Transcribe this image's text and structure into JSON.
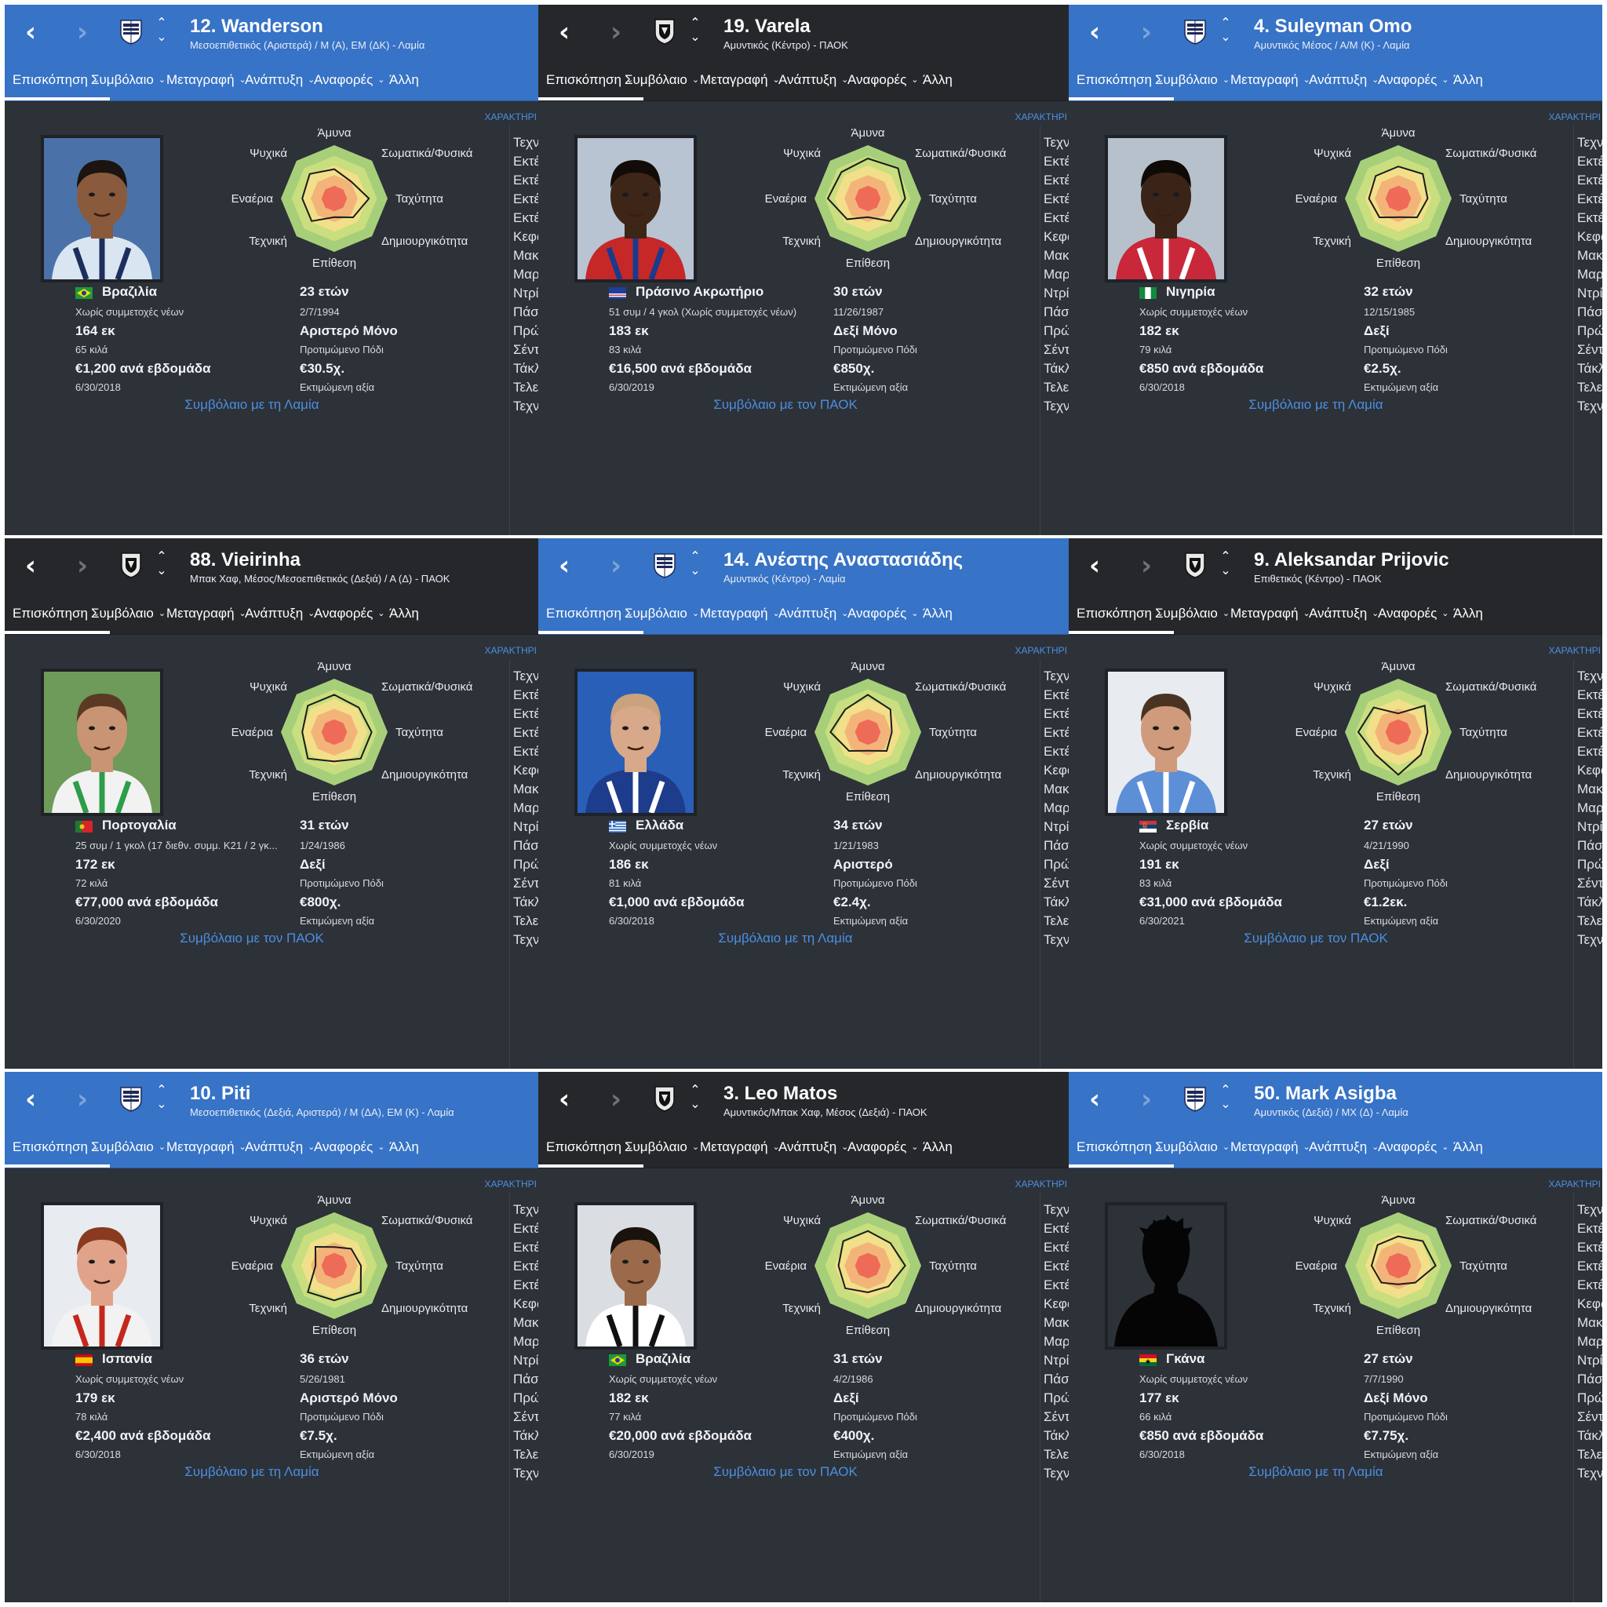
{
  "tabs": [
    "Επισκόπηση",
    "Συμβόλαιο",
    "Μεταγραφή",
    "Ανάπτυξη",
    "Αναφορές",
    "Άλλη"
  ],
  "attributes": {
    "top": "Άμυνα",
    "tr": "Σωματικά/Φυσικά",
    "r": "Ταχύτητα",
    "br": "Δημιουργικότητα",
    "bottom": "Επίθεση",
    "bl": "Τεχνική",
    "l": "Εναέρια",
    "tl": "Ψυχικά"
  },
  "characteristics_header": "ΧΑΡΑΚΤΗΡΙ",
  "right_list": [
    "Τεχνική",
    "Εκτέλεσ",
    "Εκτέλεσ",
    "Εκτέλεσ",
    "Εκτέλεσ",
    "Κεφαλιέ",
    "Μακρινά",
    "Μαρκάρ",
    "Ντρίμπλ",
    "Πάσες",
    "Πρώτη Ε",
    "Σέντρα",
    "Τάκλιν",
    "Τελειώμ",
    "Τεχνική"
  ],
  "colors": {
    "lamia": "#3773c6",
    "paok": "#25272b",
    "panel": "#2d3138",
    "link": "#4a90e2"
  },
  "players": [
    {
      "team": "lamia",
      "name": "12. Wanderson",
      "position": "Μεσοεπιθετικός (Αριστερά) / Μ (Α), ΕΜ (ΔΚ) - Λαμία",
      "nation": "Βραζιλία",
      "flag": "brazil",
      "caps": "Χωρίς συμμετοχές νέων",
      "height": "164 εκ",
      "weight": "65 κιλά",
      "wage": "€1,200 ανά εβδομάδα",
      "expiry": "6/30/2018",
      "age": "23 ετών",
      "dob": "2/7/1994",
      "foot": "Αριστερό Μόνο",
      "foot_lbl": "Προτιμώμενο Πόδι",
      "value": "€30.5χ.",
      "value_lbl": "Εκτιμώμενη αξία",
      "contract": "Συμβόλαιο με τη Λαμία",
      "radar": [
        0.55,
        0.45,
        0.65,
        0.5,
        0.35,
        0.6,
        0.6,
        0.65
      ]
    },
    {
      "team": "paok",
      "name": "19. Varela",
      "position": "Αμυντικός (Κέντρο) - ΠΑΟΚ",
      "nation": "Πράσινο Ακρωτήριο",
      "flag": "capeverde",
      "caps": "51 συμ / 4 γκολ (Χωρίς συμμετοχές νέων)",
      "height": "183 εκ",
      "weight": "83 κιλά",
      "wage": "€16,500 ανά εβδομάδα",
      "expiry": "6/30/2019",
      "age": "30 ετών",
      "dob": "11/26/1987",
      "foot": "Δεξί Μόνο",
      "foot_lbl": "Προτιμώμενο Πόδι",
      "value": "€850χ.",
      "value_lbl": "Εκτιμώμενη αξία",
      "contract": "Συμβόλαιο με τον ΠΑΟΚ",
      "radar": [
        0.75,
        0.8,
        0.7,
        0.6,
        0.35,
        0.55,
        0.75,
        0.7
      ]
    },
    {
      "team": "lamia",
      "name": "4. Suleyman Omo",
      "position": "Αμυντικός Μέσος / Α/Μ (Κ) - Λαμία",
      "nation": "Νιγηρία",
      "flag": "nigeria",
      "caps": "Χωρίς συμμετοχές νέων",
      "height": "182 εκ",
      "weight": "79 κιλά",
      "wage": "€850 ανά εβδομάδα",
      "expiry": "6/30/2018",
      "age": "32 ετών",
      "dob": "12/15/1985",
      "foot": "Δεξί",
      "foot_lbl": "Προτιμώμενο Πόδι",
      "value": "€2.5χ.",
      "value_lbl": "Εκτιμώμενη αξία",
      "contract": "Συμβόλαιο με τη Λαμία",
      "radar": [
        0.6,
        0.65,
        0.55,
        0.5,
        0.35,
        0.5,
        0.55,
        0.6
      ]
    },
    {
      "team": "paok",
      "name": "88. Vieirinha",
      "position": "Μπακ Χαφ, Μέσος/Μεσοεπιθετικός (Δεξιά) / Α (Δ) - ΠΑΟΚ",
      "nation": "Πορτογαλία",
      "flag": "portugal",
      "caps": "25 συμ / 1 γκολ (17 διεθν. συμμ. K21 / 2 γκ...",
      "height": "172 εκ",
      "weight": "72 κιλά",
      "wage": "€77,000 ανά εβδομάδα",
      "expiry": "6/30/2020",
      "age": "31 ετών",
      "dob": "1/24/1986",
      "foot": "Δεξί",
      "foot_lbl": "Προτιμώμενο Πόδι",
      "value": "€800χ.",
      "value_lbl": "Εκτιμώμενη αξία",
      "contract": "Συμβόλαιο με τον ΠΑΟΚ",
      "radar": [
        0.7,
        0.65,
        0.7,
        0.7,
        0.55,
        0.7,
        0.6,
        0.7
      ]
    },
    {
      "team": "lamia",
      "name": "14. Ανέστης Αναστασιάδης",
      "position": "Αμυντικός (Κέντρο) - Λαμία",
      "nation": "Ελλάδα",
      "flag": "greece",
      "caps": "Χωρίς συμμετοχές νέων",
      "height": "186 εκ",
      "weight": "81 κιλά",
      "wage": "€1,000 ανά εβδομάδα",
      "expiry": "6/30/2018",
      "age": "34 ετών",
      "dob": "1/21/1983",
      "foot": "Αριστερό",
      "foot_lbl": "Προτιμώμενο Πόδι",
      "value": "€2.4χ.",
      "value_lbl": "Εκτιμώμενη αξία",
      "contract": "Συμβόλαιο με τη Λαμία",
      "radar": [
        0.7,
        0.6,
        0.45,
        0.5,
        0.35,
        0.5,
        0.7,
        0.6
      ]
    },
    {
      "team": "paok",
      "name": "9. Aleksandar Prijovic",
      "position": "Επιθετικός (Κέντρο) - ΠΑΟΚ",
      "nation": "Σερβία",
      "flag": "serbia",
      "caps": "Χωρίς συμμετοχές νέων",
      "height": "191 εκ",
      "weight": "83 κιλά",
      "wage": "€31,000 ανά εβδομάδα",
      "expiry": "6/30/2021",
      "age": "27 ετών",
      "dob": "4/21/1990",
      "foot": "Δεξί",
      "foot_lbl": "Προτιμώμενο Πόδι",
      "value": "€1.2εκ.",
      "value_lbl": "Εκτιμώμενη αξία",
      "contract": "Συμβόλαιο με τον ΠΑΟΚ",
      "radar": [
        0.35,
        0.7,
        0.55,
        0.6,
        0.8,
        0.6,
        0.75,
        0.65
      ]
    },
    {
      "team": "lamia",
      "name": "10. Piti",
      "position": "Μεσοεπιθετικός (Δεξιά, Αριστερά) / Μ (ΔΑ), ΕΜ (Κ) - Λαμία",
      "nation": "Ισπανία",
      "flag": "spain",
      "caps": "Χωρίς συμμετοχές νέων",
      "height": "179 εκ",
      "weight": "78 κιλά",
      "wage": "€2,400 ανά εβδομάδα",
      "expiry": "6/30/2018",
      "age": "36 ετών",
      "dob": "5/26/1981",
      "foot": "Αριστερό Μόνο",
      "foot_lbl": "Προτιμώμενο Πόδι",
      "value": "€7.5χ.",
      "value_lbl": "Εκτιμώμενη αξία",
      "contract": "Συμβόλαιο με τη Λαμία",
      "radar": [
        0.35,
        0.45,
        0.5,
        0.7,
        0.65,
        0.7,
        0.35,
        0.5
      ]
    },
    {
      "team": "paok",
      "name": "3. Leo Matos",
      "position": "Αμυντικός/Μπακ Χαφ, Μέσος (Δεξιά) - ΠΑΟΚ",
      "nation": "Βραζιλία",
      "flag": "brazil",
      "caps": "Χωρίς συμμετοχές νέων",
      "height": "182 εκ",
      "weight": "77 κιλά",
      "wage": "€20,000 ανά εβδομάδα",
      "expiry": "6/30/2019",
      "age": "31 ετών",
      "dob": "4/2/1986",
      "foot": "Δεξί",
      "foot_lbl": "Προτιμώμενο Πόδι",
      "value": "€400χ.",
      "value_lbl": "Εκτιμώμενη αξία",
      "contract": "Συμβόλαιο με τον ΠΑΟΚ",
      "radar": [
        0.65,
        0.6,
        0.7,
        0.55,
        0.5,
        0.6,
        0.55,
        0.65
      ]
    },
    {
      "team": "lamia",
      "name": "50. Mark Asigba",
      "position": "Αμυντικός (Δεξιά) / ΜΧ (Δ) - Λαμία",
      "nation": "Γκάνα",
      "flag": "ghana",
      "caps": "Χωρίς συμμετοχές νέων",
      "height": "177 εκ",
      "weight": "66 κιλά",
      "wage": "€850 ανά εβδομάδα",
      "expiry": "6/30/2018",
      "age": "27 ετών",
      "dob": "7/7/1990",
      "foot": "Δεξί Μόνο",
      "foot_lbl": "Προτιμώμενο Πόδι",
      "value": "€7.75χ.",
      "value_lbl": "Εκτιμώμενη αξία",
      "contract": "Συμβόλαιο με τη Λαμία",
      "radar": [
        0.55,
        0.65,
        0.7,
        0.45,
        0.35,
        0.45,
        0.5,
        0.55
      ]
    }
  ]
}
